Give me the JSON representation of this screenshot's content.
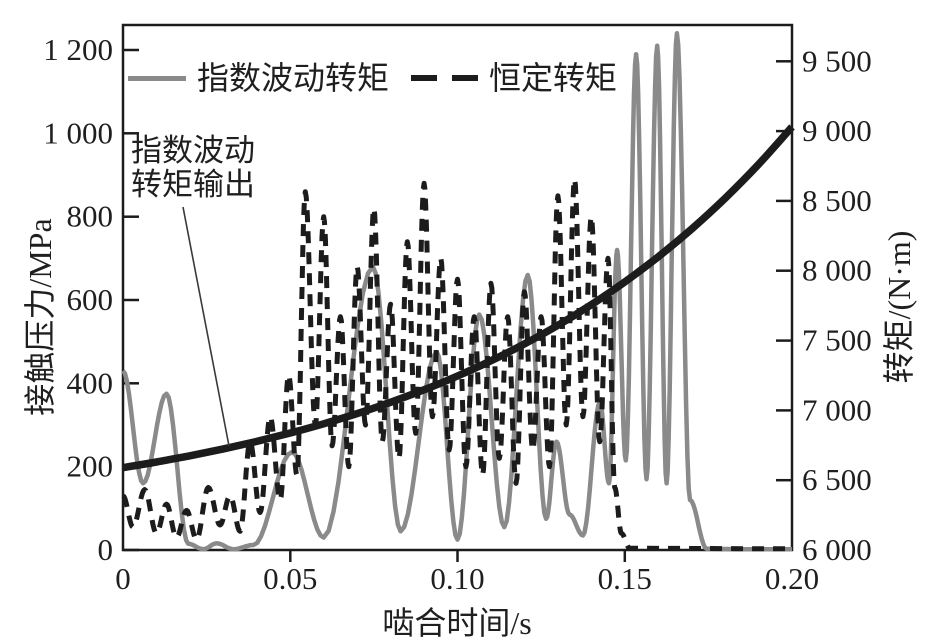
{
  "figure": {
    "background": "#ffffff",
    "frame_color": "#1c1c1c",
    "text_color": "#1f1f1f"
  },
  "legend": {
    "items": [
      {
        "label": "指数波动转矩",
        "style": "solid",
        "color": "#8a8a8a"
      },
      {
        "label": "恒定转矩",
        "style": "dashed",
        "color": "#1c1c1c"
      }
    ]
  },
  "annotation": {
    "line1": "指数波动",
    "line2": "转矩输出",
    "target_series": "指数波动转矩输出"
  },
  "chart_data": {
    "type": "line",
    "title": "",
    "grid": false,
    "legend_position": "top-inside",
    "x_axis": {
      "label": "啮合时间/s",
      "min": 0,
      "max": 0.2,
      "tick_values": [
        0,
        0.05,
        0.1,
        0.15,
        0.2
      ],
      "tick_labels": [
        "0",
        "0.05",
        "0.10",
        "0.15",
        "0.20"
      ]
    },
    "y_axis_left": {
      "label": "接触压力/MPa",
      "min": 0,
      "max": 1260,
      "tick_values": [
        0,
        200,
        400,
        600,
        800,
        1000,
        1200
      ],
      "tick_labels": [
        "0",
        "200",
        "400",
        "600",
        "800",
        "1 000",
        "1 200"
      ]
    },
    "y_axis_right": {
      "label": "转矩/(N·m)",
      "min": 6000,
      "max": 9760,
      "tick_values": [
        6000,
        6500,
        7000,
        7500,
        8000,
        8500,
        9000,
        9500
      ],
      "tick_labels": [
        "6 000",
        "6 500",
        "7 000",
        "7 500",
        "8 000",
        "8 500",
        "9 000",
        "9 500"
      ]
    },
    "series": [
      {
        "name": "指数波动转矩",
        "axis": "left",
        "style": "solid",
        "color": "#8a8a8a",
        "stroke_width": 4.5,
        "interp": "cosine",
        "points": [
          [
            0,
            430
          ],
          [
            0.006,
            160
          ],
          [
            0.013,
            375
          ],
          [
            0.0195,
            15
          ],
          [
            0.024,
            2
          ],
          [
            0.028,
            16
          ],
          [
            0.033,
            2
          ],
          [
            0.039,
            12
          ],
          [
            0.0505,
            235
          ],
          [
            0.06,
            30
          ],
          [
            0.0747,
            680
          ],
          [
            0.083,
            45
          ],
          [
            0.0938,
            475
          ],
          [
            0.1,
            25
          ],
          [
            0.1065,
            565
          ],
          [
            0.114,
            55
          ],
          [
            0.121,
            660
          ],
          [
            0.1265,
            75
          ],
          [
            0.1296,
            260
          ],
          [
            0.1335,
            85
          ],
          [
            0.1375,
            35
          ],
          [
            0.1426,
            355
          ],
          [
            0.1453,
            160
          ],
          [
            0.1477,
            720
          ],
          [
            0.1503,
            215
          ],
          [
            0.1534,
            1190
          ],
          [
            0.1565,
            170
          ],
          [
            0.1597,
            1210
          ],
          [
            0.1625,
            160
          ],
          [
            0.1656,
            1240
          ],
          [
            0.1695,
            120
          ],
          [
            0.1745,
            3
          ],
          [
            0.185,
            2
          ],
          [
            0.2,
            2
          ]
        ]
      },
      {
        "name": "恒定转矩",
        "axis": "left",
        "style": "dashed",
        "color": "#1c1c1c",
        "stroke_width": 5,
        "dash": "12 9",
        "interp": "cosine",
        "points": [
          [
            0,
            130
          ],
          [
            0.003,
            55
          ],
          [
            0.0065,
            145
          ],
          [
            0.01,
            40
          ],
          [
            0.013,
            110
          ],
          [
            0.016,
            30
          ],
          [
            0.019,
            95
          ],
          [
            0.022,
            25
          ],
          [
            0.0255,
            150
          ],
          [
            0.029,
            60
          ],
          [
            0.032,
            130
          ],
          [
            0.035,
            45
          ],
          [
            0.038,
            260
          ],
          [
            0.041,
            90
          ],
          [
            0.044,
            320
          ],
          [
            0.047,
            120
          ],
          [
            0.0495,
            420
          ],
          [
            0.052,
            180
          ],
          [
            0.0545,
            860
          ],
          [
            0.0575,
            300
          ],
          [
            0.06,
            800
          ],
          [
            0.0625,
            250
          ],
          [
            0.065,
            560
          ],
          [
            0.0675,
            200
          ],
          [
            0.07,
            680
          ],
          [
            0.0725,
            300
          ],
          [
            0.075,
            820
          ],
          [
            0.0775,
            260
          ],
          [
            0.08,
            590
          ],
          [
            0.0825,
            220
          ],
          [
            0.085,
            740
          ],
          [
            0.0875,
            280
          ],
          [
            0.09,
            880
          ],
          [
            0.0925,
            320
          ],
          [
            0.095,
            700
          ],
          [
            0.0975,
            240
          ],
          [
            0.1,
            650
          ],
          [
            0.1025,
            200
          ],
          [
            0.105,
            560
          ],
          [
            0.1075,
            180
          ],
          [
            0.11,
            640
          ],
          [
            0.1125,
            220
          ],
          [
            0.115,
            560
          ],
          [
            0.1175,
            160
          ],
          [
            0.12,
            620
          ],
          [
            0.1225,
            240
          ],
          [
            0.125,
            560
          ],
          [
            0.1275,
            200
          ],
          [
            0.13,
            850
          ],
          [
            0.1325,
            300
          ],
          [
            0.135,
            890
          ],
          [
            0.1375,
            320
          ],
          [
            0.14,
            800
          ],
          [
            0.1425,
            260
          ],
          [
            0.145,
            700
          ],
          [
            0.147,
            150
          ],
          [
            0.149,
            40
          ],
          [
            0.1515,
            4
          ],
          [
            0.2,
            3
          ]
        ]
      },
      {
        "name": "指数波动转矩输出",
        "axis": "right",
        "style": "solid",
        "color": "#1c1c1c",
        "stroke_width": 7.5,
        "interp": "smooth",
        "points": [
          [
            0,
            6590
          ],
          [
            0.01,
            6630
          ],
          [
            0.02,
            6675
          ],
          [
            0.03,
            6724
          ],
          [
            0.04,
            6778
          ],
          [
            0.05,
            6838
          ],
          [
            0.06,
            6904
          ],
          [
            0.07,
            6977
          ],
          [
            0.08,
            7058
          ],
          [
            0.09,
            7147
          ],
          [
            0.1,
            7246
          ],
          [
            0.11,
            7355
          ],
          [
            0.12,
            7476
          ],
          [
            0.13,
            7609
          ],
          [
            0.14,
            7757
          ],
          [
            0.15,
            7920
          ],
          [
            0.16,
            8100
          ],
          [
            0.17,
            8299
          ],
          [
            0.18,
            8519
          ],
          [
            0.19,
            8762
          ],
          [
            0.2,
            9030
          ]
        ]
      }
    ]
  }
}
